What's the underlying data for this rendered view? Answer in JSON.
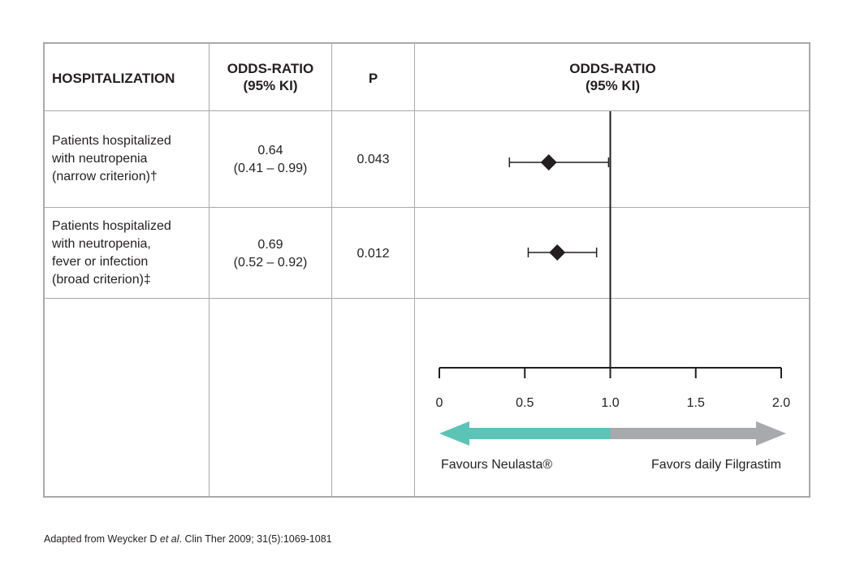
{
  "table": {
    "headers": {
      "col1": "HOSPITALIZATION",
      "col2_line1": "ODDS-RATIO",
      "col2_line2": "(95% KI)",
      "col3": "P",
      "col4_line1": "ODDS-RATIO",
      "col4_line2": "(95% KI)"
    },
    "rows": [
      {
        "label_lines": [
          "Patients hospitalized",
          "with neutropenia",
          "(narrow criterion)†"
        ],
        "or_text": "0.64",
        "ci_text": "(0.41 – 0.99)",
        "p_value": "0.043"
      },
      {
        "label_lines": [
          "Patients hospitalized",
          "with neutropenia,",
          "fever or infection",
          "(broad criterion)‡"
        ],
        "or_text": "0.69",
        "ci_text": "(0.52 – 0.92)",
        "p_value": "0.012"
      }
    ]
  },
  "chart_data": {
    "type": "scatter",
    "subtype": "forest-plot",
    "xlim": [
      0,
      2.0
    ],
    "x_ticks": [
      0,
      0.5,
      1.0,
      1.5,
      2.0
    ],
    "x_tick_labels": [
      "0",
      "0.5",
      "1.0",
      "1.5",
      "2.0"
    ],
    "reference_line": 1.0,
    "series": [
      {
        "label": "Patients hospitalized with neutropenia (narrow criterion)†",
        "estimate": 0.64,
        "ci_low": 0.41,
        "ci_high": 0.99
      },
      {
        "label": "Patients hospitalized with neutropenia, fever or infection (broad criterion)‡",
        "estimate": 0.69,
        "ci_low": 0.52,
        "ci_high": 0.92
      }
    ],
    "direction_arrow": {
      "left_label": "Favours Neulasta®",
      "right_label": "Favors daily Filgrastim",
      "left_color": "#5bc4b6",
      "right_color": "#a7a9ac"
    }
  },
  "footnote": {
    "prefix": "Adapted from Weycker D ",
    "italic": "et al",
    "suffix": ". Clin Ther 2009; 31(5):1069-1081"
  }
}
